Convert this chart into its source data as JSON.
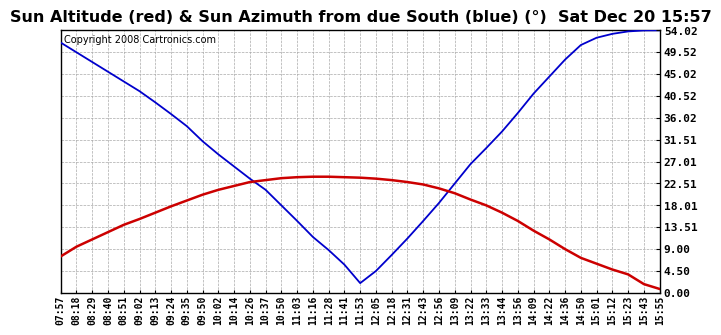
{
  "title": "Sun Altitude (red) & Sun Azimuth from due South (blue) (°)  Sat Dec 20 15:57",
  "copyright": "Copyright 2008 Cartronics.com",
  "background_color": "#ffffff",
  "plot_bg_color": "#ffffff",
  "grid_color": "#aaaaaa",
  "yticks": [
    0.0,
    4.5,
    9.0,
    13.51,
    18.01,
    22.51,
    27.01,
    31.51,
    36.02,
    40.52,
    45.02,
    49.52,
    54.02
  ],
  "ylim": [
    0.0,
    54.02
  ],
  "x_labels": [
    "07:57",
    "08:18",
    "08:29",
    "08:40",
    "08:51",
    "09:02",
    "09:13",
    "09:24",
    "09:35",
    "09:50",
    "10:02",
    "10:14",
    "10:26",
    "10:37",
    "10:50",
    "11:03",
    "11:16",
    "11:28",
    "11:41",
    "11:53",
    "12:05",
    "12:18",
    "12:31",
    "12:43",
    "12:56",
    "13:09",
    "13:22",
    "13:33",
    "13:44",
    "13:56",
    "14:09",
    "14:22",
    "14:36",
    "14:50",
    "15:01",
    "15:12",
    "15:23",
    "15:43",
    "15:55"
  ],
  "blue_values": [
    51.5,
    49.5,
    47.5,
    45.5,
    43.5,
    41.5,
    39.2,
    36.8,
    34.3,
    31.2,
    28.5,
    26.0,
    23.5,
    21.2,
    18.0,
    14.8,
    11.5,
    8.8,
    5.8,
    2.0,
    4.5,
    7.8,
    11.2,
    14.8,
    18.5,
    22.5,
    26.5,
    29.8,
    33.2,
    37.0,
    41.0,
    44.5,
    48.0,
    51.0,
    52.5,
    53.3,
    53.8,
    54.0,
    54.02
  ],
  "red_values": [
    7.5,
    9.5,
    11.0,
    12.5,
    14.0,
    15.2,
    16.5,
    17.8,
    19.0,
    20.2,
    21.2,
    22.0,
    22.8,
    23.2,
    23.6,
    23.8,
    23.9,
    23.9,
    23.8,
    23.7,
    23.5,
    23.2,
    22.8,
    22.3,
    21.5,
    20.5,
    19.2,
    18.0,
    16.5,
    14.8,
    12.8,
    11.0,
    9.0,
    7.2,
    6.0,
    4.8,
    3.8,
    1.8,
    0.8
  ],
  "blue_color": "#0000cc",
  "red_color": "#cc0000",
  "title_fontsize": 11.5,
  "tick_fontsize": 7,
  "copyright_fontsize": 7,
  "ytick_fontsize": 8
}
